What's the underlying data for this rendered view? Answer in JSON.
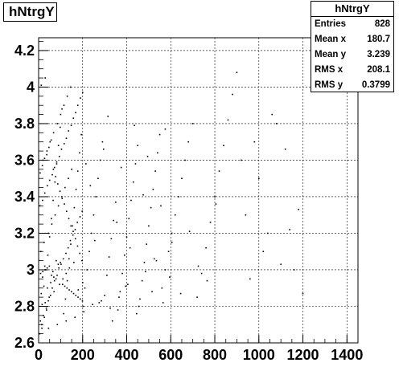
{
  "chart_data": {
    "type": "scatter",
    "title": "hNtrgY",
    "xlabel": "",
    "ylabel": "",
    "xlim": [
      0,
      1450
    ],
    "ylim": [
      2.6,
      4.27
    ],
    "xticks": [
      0,
      200,
      400,
      600,
      800,
      1000,
      1200,
      1400
    ],
    "xtick_labels": [
      "0",
      "200",
      "400",
      "600",
      "800",
      "1000",
      "1200",
      "1400"
    ],
    "yticks": [
      2.6,
      2.8,
      3.0,
      3.2,
      3.4,
      3.6,
      3.8,
      4.0,
      4.2
    ],
    "ytick_labels": [
      "2.6",
      "2.8",
      "3",
      "3.2",
      "3.4",
      "3.6",
      "3.8",
      "4",
      "4.2"
    ],
    "grid": true,
    "stats": {
      "title": "hNtrgY",
      "rows": [
        {
          "label": "Entries",
          "value": "828"
        },
        {
          "label": "Mean x",
          "value": "180.7"
        },
        {
          "label": "Mean y",
          "value": "3.239"
        },
        {
          "label": "RMS x",
          "value": "208.1"
        },
        {
          "label": "RMS y",
          "value": "0.3799"
        }
      ]
    },
    "points": [
      [
        15,
        2.68
      ],
      [
        22,
        2.75
      ],
      [
        30,
        2.82
      ],
      [
        12,
        2.87
      ],
      [
        40,
        2.9
      ],
      [
        55,
        2.93
      ],
      [
        18,
        2.96
      ],
      [
        65,
        2.99
      ],
      [
        28,
        3.02
      ],
      [
        80,
        3.05
      ],
      [
        35,
        2.79
      ],
      [
        48,
        2.85
      ],
      [
        70,
        2.88
      ],
      [
        95,
        2.92
      ],
      [
        110,
        2.95
      ],
      [
        125,
        2.98
      ],
      [
        140,
        3.01
      ],
      [
        160,
        3.04
      ],
      [
        180,
        2.89
      ],
      [
        200,
        2.93
      ],
      [
        10,
        3.1
      ],
      [
        25,
        3.15
      ],
      [
        45,
        3.2
      ],
      [
        60,
        3.25
      ],
      [
        75,
        3.3
      ],
      [
        90,
        3.35
      ],
      [
        105,
        3.4
      ],
      [
        120,
        3.45
      ],
      [
        135,
        3.5
      ],
      [
        150,
        3.55
      ],
      [
        20,
        3.6
      ],
      [
        38,
        3.65
      ],
      [
        52,
        3.7
      ],
      [
        68,
        3.75
      ],
      [
        85,
        3.8
      ],
      [
        100,
        3.85
      ],
      [
        115,
        3.9
      ],
      [
        130,
        3.95
      ],
      [
        145,
        4.0
      ],
      [
        30,
        4.05
      ],
      [
        8,
        2.72
      ],
      [
        16,
        2.81
      ],
      [
        24,
        2.91
      ],
      [
        32,
        3.0
      ],
      [
        42,
        3.08
      ],
      [
        50,
        3.18
      ],
      [
        58,
        3.28
      ],
      [
        66,
        3.38
      ],
      [
        74,
        3.48
      ],
      [
        82,
        3.58
      ],
      [
        90,
        3.68
      ],
      [
        98,
        3.78
      ],
      [
        106,
        3.88
      ],
      [
        114,
        2.76
      ],
      [
        122,
        2.84
      ],
      [
        130,
        2.94
      ],
      [
        138,
        3.06
      ],
      [
        146,
        3.14
      ],
      [
        154,
        3.24
      ],
      [
        162,
        3.34
      ],
      [
        170,
        3.44
      ],
      [
        178,
        3.54
      ],
      [
        186,
        3.64
      ],
      [
        194,
        3.74
      ],
      [
        202,
        2.8
      ],
      [
        210,
        2.9
      ],
      [
        220,
        3.0
      ],
      [
        230,
        3.1
      ],
      [
        240,
        3.2
      ],
      [
        250,
        3.3
      ],
      [
        260,
        3.4
      ],
      [
        270,
        3.5
      ],
      [
        280,
        3.6
      ],
      [
        290,
        3.7
      ],
      [
        300,
        2.86
      ],
      [
        310,
        2.97
      ],
      [
        320,
        3.07
      ],
      [
        330,
        3.17
      ],
      [
        340,
        3.27
      ],
      [
        350,
        3.37
      ],
      [
        360,
        2.78
      ],
      [
        370,
        2.88
      ],
      [
        380,
        2.98
      ],
      [
        390,
        3.08
      ],
      [
        400,
        3.18
      ],
      [
        410,
        3.28
      ],
      [
        420,
        3.38
      ],
      [
        430,
        3.48
      ],
      [
        440,
        3.58
      ],
      [
        450,
        3.68
      ],
      [
        460,
        2.84
      ],
      [
        470,
        2.94
      ],
      [
        480,
        3.04
      ],
      [
        490,
        3.14
      ],
      [
        500,
        3.24
      ],
      [
        510,
        3.34
      ],
      [
        520,
        3.44
      ],
      [
        530,
        3.54
      ],
      [
        540,
        3.64
      ],
      [
        550,
        3.74
      ],
      [
        560,
        2.9
      ],
      [
        575,
        3.0
      ],
      [
        590,
        3.1
      ],
      [
        605,
        3.2
      ],
      [
        620,
        3.3
      ],
      [
        635,
        3.4
      ],
      [
        650,
        3.5
      ],
      [
        665,
        3.6
      ],
      [
        680,
        3.7
      ],
      [
        700,
        3.8
      ],
      [
        720,
        2.85
      ],
      [
        740,
        2.98
      ],
      [
        760,
        3.12
      ],
      [
        780,
        3.26
      ],
      [
        800,
        3.4
      ],
      [
        820,
        3.54
      ],
      [
        840,
        3.68
      ],
      [
        860,
        3.82
      ],
      [
        880,
        3.96
      ],
      [
        900,
        4.08
      ],
      [
        920,
        3.6
      ],
      [
        940,
        3.3
      ],
      [
        960,
        2.95
      ],
      [
        980,
        3.7
      ],
      [
        1000,
        3.5
      ],
      [
        1020,
        3.1
      ],
      [
        1040,
        3.2
      ],
      [
        1060,
        3.85
      ],
      [
        1080,
        3.8
      ],
      [
        1100,
        3.03
      ],
      [
        1120,
        3.66
      ],
      [
        1140,
        3.22
      ],
      [
        1160,
        3.0
      ],
      [
        1180,
        3.33
      ],
      [
        1200,
        2.87
      ],
      [
        5,
        2.65
      ],
      [
        14,
        2.7
      ],
      [
        26,
        2.74
      ],
      [
        36,
        2.78
      ],
      [
        44,
        2.83
      ],
      [
        54,
        2.86
      ],
      [
        62,
        2.9
      ],
      [
        72,
        2.94
      ],
      [
        84,
        2.97
      ],
      [
        92,
        3.01
      ],
      [
        102,
        3.03
      ],
      [
        112,
        3.06
      ],
      [
        124,
        3.09
      ],
      [
        134,
        3.12
      ],
      [
        144,
        3.16
      ],
      [
        156,
        3.19
      ],
      [
        166,
        3.22
      ],
      [
        176,
        3.26
      ],
      [
        188,
        3.29
      ],
      [
        198,
        3.32
      ],
      [
        6,
        3.35
      ],
      [
        18,
        3.38
      ],
      [
        28,
        3.42
      ],
      [
        40,
        3.46
      ],
      [
        50,
        3.49
      ],
      [
        62,
        3.52
      ],
      [
        72,
        3.56
      ],
      [
        82,
        3.59
      ],
      [
        94,
        3.62
      ],
      [
        104,
        3.66
      ],
      [
        116,
        3.69
      ],
      [
        126,
        3.72
      ],
      [
        136,
        3.76
      ],
      [
        148,
        3.79
      ],
      [
        158,
        3.83
      ],
      [
        168,
        3.86
      ],
      [
        178,
        3.9
      ],
      [
        190,
        3.94
      ],
      [
        200,
        3.97
      ],
      [
        12,
        4.01
      ],
      [
        9,
        2.98
      ],
      [
        19,
        2.99
      ],
      [
        29,
        3.0
      ],
      [
        39,
        3.01
      ],
      [
        49,
        3.02
      ],
      [
        59,
        2.97
      ],
      [
        69,
        2.96
      ],
      [
        79,
        2.95
      ],
      [
        89,
        3.03
      ],
      [
        99,
        3.04
      ],
      [
        109,
        2.92
      ],
      [
        119,
        2.91
      ],
      [
        129,
        2.9
      ],
      [
        139,
        2.89
      ],
      [
        149,
        2.88
      ],
      [
        159,
        2.87
      ],
      [
        169,
        2.86
      ],
      [
        179,
        2.85
      ],
      [
        189,
        2.84
      ],
      [
        199,
        2.83
      ],
      [
        7,
        3.53
      ],
      [
        17,
        3.57
      ],
      [
        27,
        3.61
      ],
      [
        37,
        3.63
      ],
      [
        47,
        3.67
      ],
      [
        57,
        3.71
      ],
      [
        67,
        3.55
      ],
      [
        77,
        3.51
      ],
      [
        87,
        3.47
      ],
      [
        97,
        3.43
      ],
      [
        107,
        3.39
      ],
      [
        117,
        3.36
      ],
      [
        127,
        3.32
      ],
      [
        137,
        3.28
      ],
      [
        147,
        3.24
      ],
      [
        157,
        3.21
      ],
      [
        167,
        3.17
      ],
      [
        177,
        3.13
      ],
      [
        187,
        3.09
      ],
      [
        197,
        3.05
      ],
      [
        215,
        3.58
      ],
      [
        235,
        3.46
      ],
      [
        255,
        3.16
      ],
      [
        275,
        2.82
      ],
      [
        295,
        3.66
      ],
      [
        315,
        3.84
      ],
      [
        335,
        2.72
      ],
      [
        355,
        3.26
      ],
      [
        375,
        3.56
      ],
      [
        395,
        2.91
      ],
      [
        415,
        3.12
      ],
      [
        435,
        3.79
      ],
      [
        455,
        2.8
      ],
      [
        475,
        3.41
      ],
      [
        495,
        3.62
      ],
      [
        515,
        2.88
      ],
      [
        535,
        3.05
      ],
      [
        555,
        3.35
      ],
      [
        575,
        3.77
      ],
      [
        595,
        2.96
      ],
      [
        45,
        2.68
      ],
      [
        85,
        2.7
      ],
      [
        125,
        2.72
      ],
      [
        165,
        2.74
      ],
      [
        205,
        2.77
      ],
      [
        245,
        2.81
      ],
      [
        285,
        2.83
      ],
      [
        325,
        2.79
      ],
      [
        365,
        2.85
      ],
      [
        405,
        2.92
      ],
      [
        445,
        2.76
      ],
      [
        485,
        2.99
      ],
      [
        525,
        3.06
      ],
      [
        565,
        2.82
      ],
      [
        605,
        3.15
      ],
      [
        645,
        2.87
      ],
      [
        685,
        3.21
      ],
      [
        725,
        3.02
      ],
      [
        765,
        2.94
      ],
      [
        805,
        3.36
      ]
    ]
  }
}
